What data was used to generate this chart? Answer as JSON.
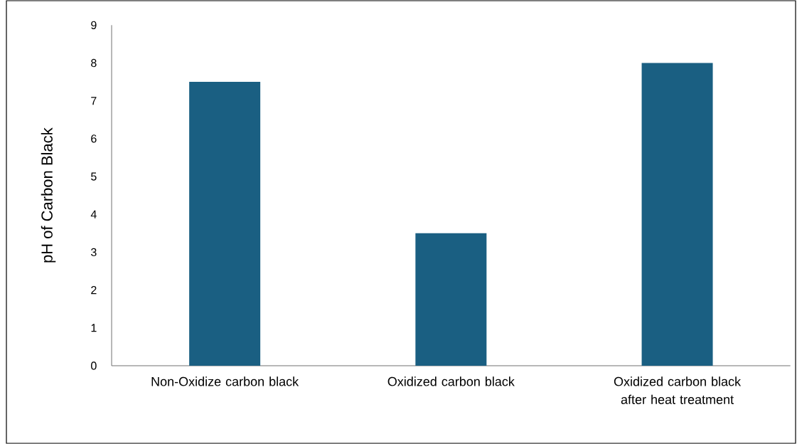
{
  "chart_data": {
    "type": "bar",
    "ylabel": "pH of Carbon Black",
    "categories": [
      "Non-Oxidize carbon black",
      "Oxidized carbon black",
      "Oxidized carbon black after heat treatment"
    ],
    "values": [
      7.5,
      3.5,
      8
    ],
    "color": "#1a5f82",
    "ylim": [
      0,
      9
    ],
    "yticks": [
      0,
      1,
      2,
      3,
      4,
      5,
      6,
      7,
      8,
      9
    ],
    "grid": false
  }
}
